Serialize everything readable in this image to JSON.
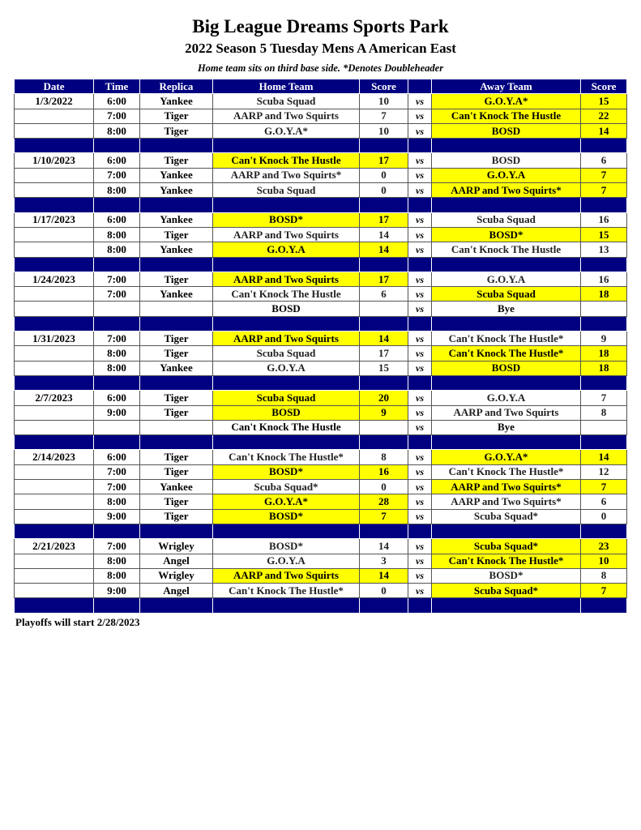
{
  "header": {
    "title": "Big League Dreams Sports Park",
    "subtitle": "2022 Season 5 Tuesday Mens A American East",
    "note": "Home team sits on third base side.  *Denotes Doubleheader"
  },
  "columns": [
    "Date",
    "Time",
    "Replica",
    "Home Team",
    "Score",
    "",
    "Away Team",
    "Score"
  ],
  "vs_label": "vs",
  "colors": {
    "header_bg": "#000080",
    "winner_highlight": "#ffff00"
  },
  "weeks": [
    {
      "date": "1/3/2022",
      "games": [
        {
          "time": "6:00",
          "replica": "Yankee",
          "home": "Scuba Squad",
          "home_score": "10",
          "away": "G.O.Y.A*",
          "away_score": "15",
          "winner": "away"
        },
        {
          "time": "7:00",
          "replica": "Tiger",
          "home": "AARP and Two Squirts",
          "home_score": "7",
          "away": "Can't Knock The Hustle",
          "away_score": "22",
          "winner": "away"
        },
        {
          "time": "8:00",
          "replica": "Tiger",
          "home": "G.O.Y.A*",
          "home_score": "10",
          "away": "BOSD",
          "away_score": "14",
          "winner": "away"
        }
      ]
    },
    {
      "date": "1/10/2023",
      "games": [
        {
          "time": "6:00",
          "replica": "Tiger",
          "home": "Can't Knock The Hustle",
          "home_score": "17",
          "away": "BOSD",
          "away_score": "6",
          "winner": "home"
        },
        {
          "time": "7:00",
          "replica": "Yankee",
          "home": "AARP and Two Squirts*",
          "home_score": "0",
          "away": "G.O.Y.A",
          "away_score": "7",
          "winner": "away"
        },
        {
          "time": "8:00",
          "replica": "Yankee",
          "home": "Scuba Squad",
          "home_score": "0",
          "away": "AARP and Two Squirts*",
          "away_score": "7",
          "winner": "away"
        }
      ]
    },
    {
      "date": "1/17/2023",
      "games": [
        {
          "time": "6:00",
          "replica": "Yankee",
          "home": "BOSD*",
          "home_score": "17",
          "away": "Scuba Squad",
          "away_score": "16",
          "winner": "home"
        },
        {
          "time": "8:00",
          "replica": "Tiger",
          "home": "AARP and Two Squirts",
          "home_score": "14",
          "away": "BOSD*",
          "away_score": "15",
          "winner": "away"
        },
        {
          "time": "8:00",
          "replica": "Yankee",
          "home": "G.O.Y.A",
          "home_score": "14",
          "away": "Can't Knock The Hustle",
          "away_score": "13",
          "winner": "home"
        }
      ]
    },
    {
      "date": "1/24/2023",
      "games": [
        {
          "time": "7:00",
          "replica": "Tiger",
          "home": "AARP and Two Squirts",
          "home_score": "17",
          "away": "G.O.Y.A",
          "away_score": "16",
          "winner": "home"
        },
        {
          "time": "7:00",
          "replica": "Yankee",
          "home": "Can't Knock The Hustle",
          "home_score": "6",
          "away": "Scuba Squad",
          "away_score": "18",
          "winner": "away"
        },
        {
          "time": "",
          "replica": "",
          "home": "BOSD",
          "home_score": "",
          "away": "Bye",
          "away_score": "",
          "winner": "bye"
        }
      ]
    },
    {
      "date": "1/31/2023",
      "games": [
        {
          "time": "7:00",
          "replica": "Tiger",
          "home": "AARP and Two Squirts",
          "home_score": "14",
          "away": "Can't Knock The Hustle*",
          "away_score": "9",
          "winner": "home"
        },
        {
          "time": "8:00",
          "replica": "Tiger",
          "home": "Scuba Squad",
          "home_score": "17",
          "away": "Can't Knock The Hustle*",
          "away_score": "18",
          "winner": "away"
        },
        {
          "time": "8:00",
          "replica": "Yankee",
          "home": "G.O.Y.A",
          "home_score": "15",
          "away": "BOSD",
          "away_score": "18",
          "winner": "away"
        }
      ]
    },
    {
      "date": "2/7/2023",
      "games": [
        {
          "time": "6:00",
          "replica": "Tiger",
          "home": "Scuba Squad",
          "home_score": "20",
          "away": "G.O.Y.A",
          "away_score": "7",
          "winner": "home"
        },
        {
          "time": "9:00",
          "replica": "Tiger",
          "home": "BOSD",
          "home_score": "9",
          "away": "AARP and Two Squirts",
          "away_score": "8",
          "winner": "home"
        },
        {
          "time": "",
          "replica": "",
          "home": "Can't Knock The Hustle",
          "home_score": "",
          "away": "Bye",
          "away_score": "",
          "winner": "bye"
        }
      ]
    },
    {
      "date": "2/14/2023",
      "games": [
        {
          "time": "6:00",
          "replica": "Tiger",
          "home": "Can't Knock The Hustle*",
          "home_score": "8",
          "away": "G.O.Y.A*",
          "away_score": "14",
          "winner": "away"
        },
        {
          "time": "7:00",
          "replica": "Tiger",
          "home": "BOSD*",
          "home_score": "16",
          "away": "Can't Knock The Hustle*",
          "away_score": "12",
          "winner": "home"
        },
        {
          "time": "7:00",
          "replica": "Yankee",
          "home": "Scuba Squad*",
          "home_score": "0",
          "away": "AARP and Two Squirts*",
          "away_score": "7",
          "winner": "away"
        },
        {
          "time": "8:00",
          "replica": "Tiger",
          "home": "G.O.Y.A*",
          "home_score": "28",
          "away": "AARP and Two Squirts*",
          "away_score": "6",
          "winner": "home"
        },
        {
          "time": "9:00",
          "replica": "Tiger",
          "home": "BOSD*",
          "home_score": "7",
          "away": "Scuba Squad*",
          "away_score": "0",
          "winner": "home"
        }
      ]
    },
    {
      "date": "2/21/2023",
      "games": [
        {
          "time": "7:00",
          "replica": "Wrigley",
          "home": "BOSD*",
          "home_score": "14",
          "away": "Scuba Squad*",
          "away_score": "23",
          "winner": "away"
        },
        {
          "time": "8:00",
          "replica": "Angel",
          "home": "G.O.Y.A",
          "home_score": "3",
          "away": "Can't Knock The Hustle*",
          "away_score": "10",
          "winner": "away"
        },
        {
          "time": "8:00",
          "replica": "Wrigley",
          "home": "AARP and Two Squirts",
          "home_score": "14",
          "away": "BOSD*",
          "away_score": "8",
          "winner": "home"
        },
        {
          "time": "9:00",
          "replica": "Angel",
          "home": "Can't Knock The Hustle*",
          "home_score": "0",
          "away": "Scuba Squad*",
          "away_score": "7",
          "winner": "away"
        }
      ]
    }
  ],
  "footer": "Playoffs will start 2/28/2023"
}
